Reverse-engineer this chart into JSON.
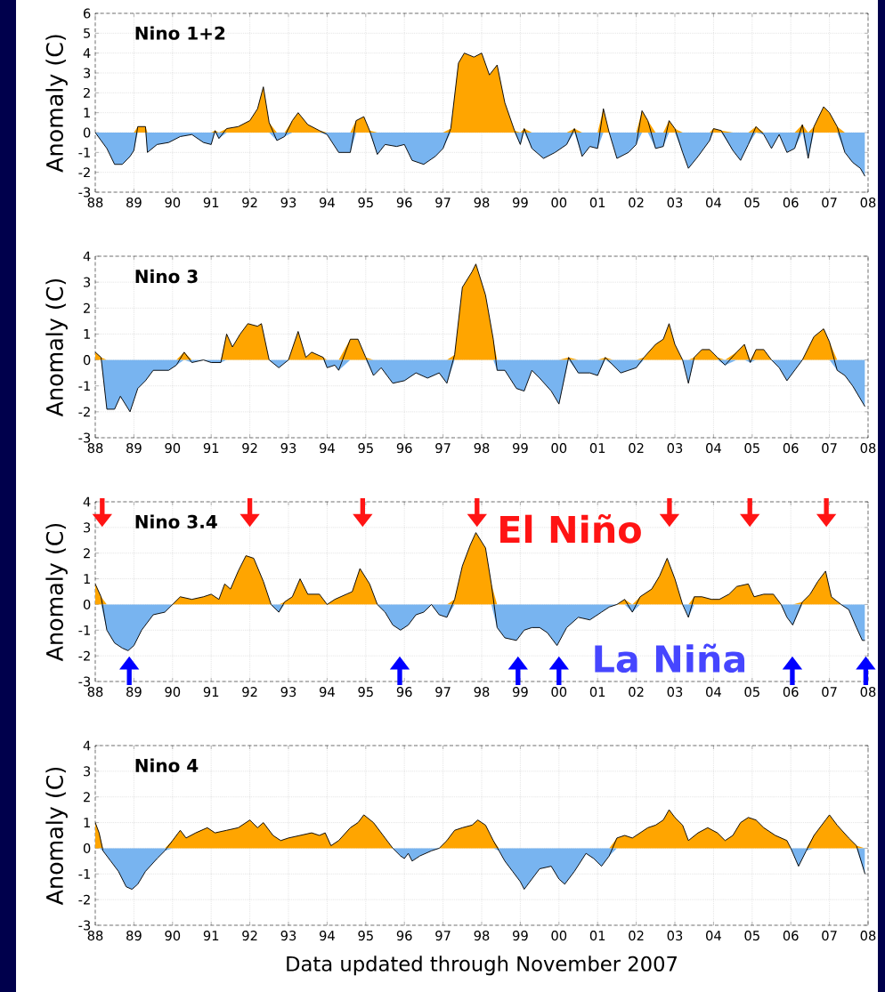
{
  "chart_data": [
    {
      "type": "area",
      "title": "Nino 1+2",
      "ylabel": "Anomaly (C)",
      "grid": true,
      "xlim": [
        1988,
        2008
      ],
      "ylim": [
        -3,
        6
      ],
      "xticks": [
        {
          "value": 1988,
          "label": "88"
        },
        {
          "value": 1989,
          "label": "89"
        },
        {
          "value": 1990,
          "label": "90"
        },
        {
          "value": 1991,
          "label": "91"
        },
        {
          "value": 1992,
          "label": "92"
        },
        {
          "value": 1993,
          "label": "93"
        },
        {
          "value": 1994,
          "label": "94"
        },
        {
          "value": 1995,
          "label": "95"
        },
        {
          "value": 1996,
          "label": "96"
        },
        {
          "value": 1997,
          "label": "97"
        },
        {
          "value": 1998,
          "label": "98"
        },
        {
          "value": 1999,
          "label": "99"
        },
        {
          "value": 2000,
          "label": "00"
        },
        {
          "value": 2001,
          "label": "01"
        },
        {
          "value": 2002,
          "label": "02"
        },
        {
          "value": 2003,
          "label": "03"
        },
        {
          "value": 2004,
          "label": "04"
        },
        {
          "value": 2005,
          "label": "05"
        },
        {
          "value": 2006,
          "label": "06"
        },
        {
          "value": 2007,
          "label": "07"
        },
        {
          "value": 2008,
          "label": "08"
        }
      ],
      "yticks": [
        -3,
        -2,
        -1,
        0,
        1,
        2,
        3,
        4,
        5,
        6
      ],
      "x": [
        1988.0,
        1988.3,
        1988.5,
        1988.7,
        1988.9,
        1989.0,
        1989.1,
        1989.3,
        1989.35,
        1989.6,
        1989.9,
        1990.2,
        1990.5,
        1990.8,
        1991.0,
        1991.1,
        1991.2,
        1991.4,
        1991.7,
        1992.0,
        1992.2,
        1992.35,
        1992.5,
        1992.7,
        1992.9,
        1993.1,
        1993.25,
        1993.5,
        1993.8,
        1994.0,
        1994.3,
        1994.6,
        1994.75,
        1994.95,
        1995.1,
        1995.3,
        1995.5,
        1995.8,
        1996.0,
        1996.2,
        1996.5,
        1996.8,
        1997.0,
        1997.2,
        1997.4,
        1997.55,
        1997.8,
        1998.0,
        1998.2,
        1998.4,
        1998.6,
        1998.85,
        1999.0,
        1999.1,
        1999.3,
        1999.6,
        1999.9,
        2000.2,
        2000.4,
        2000.6,
        2000.8,
        2001.0,
        2001.15,
        2001.3,
        2001.5,
        2001.8,
        2002.0,
        2002.15,
        2002.3,
        2002.5,
        2002.7,
        2002.85,
        2003.0,
        2003.2,
        2003.35,
        2003.6,
        2003.9,
        2004.0,
        2004.2,
        2004.5,
        2004.7,
        2004.9,
        2005.1,
        2005.3,
        2005.5,
        2005.7,
        2005.9,
        2006.1,
        2006.3,
        2006.45,
        2006.6,
        2006.85,
        2007.0,
        2007.2,
        2007.4,
        2007.6,
        2007.8,
        2007.92
      ],
      "series": [
        {
          "type": "area",
          "color": "#ffa500",
          "values": [
            0,
            0,
            0,
            0,
            0,
            0,
            0.3,
            0.3,
            0,
            0,
            0,
            0,
            0,
            0,
            0,
            0.1,
            0,
            0.2,
            0.3,
            0.6,
            1.2,
            2.3,
            0.5,
            0,
            0,
            0.6,
            1.0,
            0.4,
            0.1,
            0,
            0,
            0,
            0.6,
            0.8,
            0.1,
            0,
            0,
            0,
            0,
            0,
            0,
            0,
            0,
            0.2,
            3.5,
            4.0,
            3.8,
            4.0,
            2.9,
            3.4,
            1.5,
            0.1,
            0,
            0.2,
            0,
            0,
            0,
            0,
            0.2,
            0,
            0,
            0,
            1.2,
            0,
            0,
            0,
            0,
            1.1,
            0.6,
            0,
            0,
            0.6,
            0.2,
            0,
            0,
            0,
            0,
            0.2,
            0.1,
            0,
            0,
            0,
            0.3,
            0,
            0,
            0,
            0,
            0,
            0.4,
            0,
            0.3,
            1.3,
            1.0,
            0.3,
            0,
            0,
            0,
            0
          ]
        },
        {
          "type": "area",
          "color": "#78b4f0",
          "values": [
            0,
            -0.8,
            -1.6,
            -1.6,
            -1.2,
            -0.9,
            0,
            0,
            -1.0,
            -0.6,
            -0.5,
            -0.2,
            -0.1,
            -0.5,
            -0.6,
            0,
            -0.3,
            0,
            0,
            0,
            0,
            0,
            0,
            -0.4,
            -0.2,
            0,
            0,
            0,
            0,
            -0.1,
            -1.0,
            -1.0,
            0,
            0,
            0,
            -1.1,
            -0.6,
            -0.7,
            -0.6,
            -1.4,
            -1.6,
            -1.2,
            -0.8,
            0,
            0,
            0,
            0,
            0,
            0,
            0,
            0,
            0,
            -0.6,
            0,
            -0.8,
            -1.3,
            -1.0,
            -0.6,
            0,
            -1.2,
            -0.7,
            -0.8,
            0,
            0,
            -1.3,
            -1.0,
            -0.6,
            0,
            0,
            -0.8,
            -0.7,
            0,
            0,
            -1.0,
            -1.8,
            -1.2,
            -0.4,
            0,
            0,
            -0.9,
            -1.4,
            -0.6,
            0,
            -0.1,
            -0.8,
            -0.1,
            -1.0,
            -0.8,
            0,
            -1.3,
            0,
            0,
            0,
            0,
            -1.0,
            -1.5,
            -1.8,
            -2.2
          ]
        },
        {
          "type": "line",
          "color": "#000000",
          "values": [
            0,
            -0.8,
            -1.6,
            -1.6,
            -1.2,
            -0.9,
            0.3,
            0.3,
            -1.0,
            -0.6,
            -0.5,
            -0.2,
            -0.1,
            -0.5,
            -0.6,
            0.1,
            -0.3,
            0.2,
            0.3,
            0.6,
            1.2,
            2.3,
            0.5,
            -0.4,
            -0.2,
            0.6,
            1.0,
            0.4,
            0.1,
            -0.1,
            -1.0,
            -1.0,
            0.6,
            0.8,
            0.1,
            -1.1,
            -0.6,
            -0.7,
            -0.6,
            -1.4,
            -1.6,
            -1.2,
            -0.8,
            0.2,
            3.5,
            4.0,
            3.8,
            4.0,
            2.9,
            3.4,
            1.5,
            0.1,
            -0.6,
            0.2,
            -0.8,
            -1.3,
            -1.0,
            -0.6,
            0.2,
            -1.2,
            -0.7,
            -0.8,
            1.2,
            0.0,
            -1.3,
            -1.0,
            -0.6,
            1.1,
            0.6,
            -0.8,
            -0.7,
            0.6,
            0.2,
            -1.0,
            -1.8,
            -1.2,
            -0.4,
            0.2,
            0.1,
            -0.9,
            -1.4,
            -0.6,
            0.3,
            -0.1,
            -0.8,
            -0.1,
            -1.0,
            -0.8,
            0.4,
            -1.3,
            0.3,
            1.3,
            1.0,
            0.3,
            -1.0,
            -1.5,
            -1.8,
            -2.2
          ]
        }
      ]
    },
    {
      "type": "area",
      "title": "Nino 3",
      "ylabel": "Anomaly (C)",
      "grid": true,
      "xlim": [
        1988,
        2008
      ],
      "ylim": [
        -3,
        4
      ],
      "xticks": [
        {
          "value": 1988,
          "label": "88"
        },
        {
          "value": 1989,
          "label": "89"
        },
        {
          "value": 1990,
          "label": "90"
        },
        {
          "value": 1991,
          "label": "91"
        },
        {
          "value": 1992,
          "label": "92"
        },
        {
          "value": 1993,
          "label": "93"
        },
        {
          "value": 1994,
          "label": "94"
        },
        {
          "value": 1995,
          "label": "95"
        },
        {
          "value": 1996,
          "label": "96"
        },
        {
          "value": 1997,
          "label": "97"
        },
        {
          "value": 1998,
          "label": "98"
        },
        {
          "value": 1999,
          "label": "99"
        },
        {
          "value": 2000,
          "label": "00"
        },
        {
          "value": 2001,
          "label": "01"
        },
        {
          "value": 2002,
          "label": "02"
        },
        {
          "value": 2003,
          "label": "03"
        },
        {
          "value": 2004,
          "label": "04"
        },
        {
          "value": 2005,
          "label": "05"
        },
        {
          "value": 2006,
          "label": "06"
        },
        {
          "value": 2007,
          "label": "07"
        },
        {
          "value": 2008,
          "label": "08"
        }
      ],
      "yticks": [
        -3,
        -2,
        -1,
        0,
        1,
        2,
        3,
        4
      ],
      "x": [
        1988.0,
        1988.15,
        1988.3,
        1988.5,
        1988.65,
        1988.9,
        1989.1,
        1989.3,
        1989.5,
        1989.9,
        1990.1,
        1990.3,
        1990.5,
        1990.8,
        1991.0,
        1991.25,
        1991.4,
        1991.55,
        1991.75,
        1991.95,
        1992.2,
        1992.3,
        1992.5,
        1992.75,
        1993.0,
        1993.25,
        1993.45,
        1993.6,
        1993.9,
        1994.0,
        1994.2,
        1994.3,
        1994.6,
        1994.8,
        1995.0,
        1995.2,
        1995.4,
        1995.7,
        1996.0,
        1996.3,
        1996.6,
        1996.9,
        1997.1,
        1997.3,
        1997.5,
        1997.75,
        1997.85,
        1998.1,
        1998.3,
        1998.4,
        1998.6,
        1998.9,
        1999.1,
        1999.3,
        1999.5,
        1999.8,
        2000.0,
        2000.25,
        2000.5,
        2000.8,
        2001.0,
        2001.2,
        2001.4,
        2001.6,
        2001.8,
        2002.0,
        2002.2,
        2002.5,
        2002.7,
        2002.85,
        2003.0,
        2003.2,
        2003.35,
        2003.5,
        2003.7,
        2003.9,
        2004.1,
        2004.3,
        2004.6,
        2004.8,
        2004.95,
        2005.1,
        2005.3,
        2005.5,
        2005.7,
        2005.9,
        2006.1,
        2006.3,
        2006.6,
        2006.85,
        2007.0,
        2007.2,
        2007.4,
        2007.6,
        2007.92
      ],
      "series": [
        {
          "type": "area",
          "color": "#ffa500",
          "values": [
            0.3,
            0.1,
            0,
            0,
            0,
            0,
            0,
            0,
            0,
            0,
            0,
            0.3,
            0,
            0,
            0,
            0,
            1.0,
            0.5,
            1.0,
            1.4,
            1.3,
            1.4,
            0,
            0,
            0,
            1.1,
            0.1,
            0.3,
            0.1,
            0,
            0,
            0,
            0.8,
            0.8,
            0.1,
            0,
            0,
            0,
            0,
            0,
            0,
            0,
            0,
            0.2,
            2.8,
            3.4,
            3.7,
            2.5,
            0.8,
            0,
            0,
            0,
            0,
            0,
            0,
            0,
            0,
            0.1,
            0,
            0,
            0,
            0.1,
            0,
            0,
            0,
            0,
            0.1,
            0.6,
            0.8,
            1.4,
            0.6,
            0,
            0,
            0.1,
            0.4,
            0.4,
            0.1,
            0,
            0.3,
            0.6,
            0,
            0.4,
            0.4,
            0,
            0,
            0,
            0,
            0,
            0.9,
            1.2,
            0.7,
            0,
            0,
            0,
            0
          ]
        },
        {
          "type": "area",
          "color": "#78b4f0",
          "values": [
            0,
            0,
            -1.9,
            -1.9,
            -1.4,
            -2.0,
            -1.1,
            -0.8,
            -0.4,
            -0.4,
            -0.2,
            0,
            -0.1,
            0,
            -0.1,
            -0.1,
            0,
            0,
            0,
            0,
            0,
            0,
            0,
            -0.3,
            0,
            0,
            0,
            0,
            0,
            -0.3,
            -0.2,
            -0.4,
            0,
            0,
            0,
            -0.6,
            -0.3,
            -0.9,
            -0.8,
            -0.5,
            -0.7,
            -0.5,
            -0.9,
            0,
            0,
            0,
            0,
            0,
            0,
            -0.4,
            -0.4,
            -1.1,
            -1.2,
            -0.4,
            -0.7,
            -1.2,
            -1.7,
            0,
            -0.5,
            -0.5,
            -0.6,
            0,
            -0.2,
            -0.5,
            -0.4,
            -0.3,
            0,
            0,
            0,
            0,
            0,
            0,
            -0.9,
            0,
            0,
            0,
            0,
            -0.2,
            0,
            0,
            -0.1,
            0,
            0,
            0,
            -0.3,
            -0.8,
            -0.4,
            0,
            0,
            0,
            0,
            -0.4,
            -0.6,
            -1.0,
            -1.8
          ]
        },
        {
          "type": "line",
          "color": "#000000",
          "values": [
            0.3,
            0.1,
            -1.9,
            -1.9,
            -1.4,
            -2.0,
            -1.1,
            -0.8,
            -0.4,
            -0.4,
            -0.2,
            0.3,
            -0.1,
            0.0,
            -0.1,
            -0.1,
            1.0,
            0.5,
            1.0,
            1.4,
            1.3,
            1.4,
            0.0,
            -0.3,
            0.0,
            1.1,
            0.1,
            0.3,
            0.1,
            -0.3,
            -0.2,
            -0.4,
            0.8,
            0.8,
            0.1,
            -0.6,
            -0.3,
            -0.9,
            -0.8,
            -0.5,
            -0.7,
            -0.5,
            -0.9,
            0.2,
            2.8,
            3.4,
            3.7,
            2.5,
            0.8,
            -0.4,
            -0.4,
            -1.1,
            -1.2,
            -0.4,
            -0.7,
            -1.2,
            -1.7,
            0.1,
            -0.5,
            -0.5,
            -0.6,
            0.1,
            -0.2,
            -0.5,
            -0.4,
            -0.3,
            0.1,
            0.6,
            0.8,
            1.4,
            0.6,
            0.0,
            -0.9,
            0.1,
            0.4,
            0.4,
            0.1,
            -0.2,
            0.3,
            0.6,
            -0.1,
            0.4,
            0.4,
            0.0,
            -0.3,
            -0.8,
            -0.4,
            0.0,
            0.9,
            1.2,
            0.7,
            -0.4,
            -0.6,
            -1.0,
            -1.8
          ]
        }
      ]
    },
    {
      "type": "area",
      "title": "Nino 3.4",
      "ylabel": "Anomaly (C)",
      "grid": true,
      "xlim": [
        1988,
        2008
      ],
      "ylim": [
        -3,
        4
      ],
      "annotations": [
        "El Niño",
        "La Niña"
      ],
      "xticks": [
        {
          "value": 1988,
          "label": "88"
        },
        {
          "value": 1989,
          "label": "89"
        },
        {
          "value": 1990,
          "label": "90"
        },
        {
          "value": 1991,
          "label": "91"
        },
        {
          "value": 1992,
          "label": "92"
        },
        {
          "value": 1993,
          "label": "93"
        },
        {
          "value": 1994,
          "label": "94"
        },
        {
          "value": 1995,
          "label": "95"
        },
        {
          "value": 1996,
          "label": "96"
        },
        {
          "value": 1997,
          "label": "97"
        },
        {
          "value": 1998,
          "label": "98"
        },
        {
          "value": 1999,
          "label": "99"
        },
        {
          "value": 2000,
          "label": "00"
        },
        {
          "value": 2001,
          "label": "01"
        },
        {
          "value": 2002,
          "label": "02"
        },
        {
          "value": 2003,
          "label": "03"
        },
        {
          "value": 2004,
          "label": "04"
        },
        {
          "value": 2005,
          "label": "05"
        },
        {
          "value": 2006,
          "label": "06"
        },
        {
          "value": 2007,
          "label": "07"
        },
        {
          "value": 2008,
          "label": "08"
        }
      ],
      "yticks": [
        -3,
        -2,
        -1,
        0,
        1,
        2,
        3,
        4
      ],
      "x": [
        1988.0,
        1988.15,
        1988.3,
        1988.5,
        1988.7,
        1988.85,
        1989.0,
        1989.2,
        1989.5,
        1989.8,
        1990.0,
        1990.2,
        1990.5,
        1990.8,
        1991.0,
        1991.2,
        1991.35,
        1991.5,
        1991.7,
        1991.9,
        1992.1,
        1992.35,
        1992.55,
        1992.75,
        1992.9,
        1993.1,
        1993.3,
        1993.5,
        1993.8,
        1994.0,
        1994.2,
        1994.5,
        1994.65,
        1994.85,
        1995.1,
        1995.3,
        1995.5,
        1995.7,
        1995.9,
        1996.1,
        1996.3,
        1996.5,
        1996.7,
        1996.9,
        1997.1,
        1997.3,
        1997.5,
        1997.7,
        1997.85,
        1998.1,
        1998.25,
        1998.4,
        1998.6,
        1998.9,
        1999.1,
        1999.3,
        1999.5,
        1999.7,
        1999.95,
        2000.2,
        2000.5,
        2000.8,
        2001.1,
        2001.3,
        2001.5,
        2001.7,
        2001.9,
        2002.1,
        2002.4,
        2002.6,
        2002.8,
        2003.0,
        2003.2,
        2003.35,
        2003.5,
        2003.7,
        2003.95,
        2004.15,
        2004.4,
        2004.6,
        2004.9,
        2005.05,
        2005.3,
        2005.55,
        2005.75,
        2005.9,
        2006.05,
        2006.3,
        2006.5,
        2006.7,
        2006.9,
        2007.05,
        2007.3,
        2007.5,
        2007.7,
        2007.85,
        2007.92
      ],
      "series": [
        {
          "type": "area",
          "color": "#ffa500",
          "values": [
            0.8,
            0.3,
            0,
            0,
            0,
            0,
            0,
            0,
            0,
            0,
            0,
            0.3,
            0.2,
            0.3,
            0.4,
            0.2,
            0.8,
            0.6,
            1.3,
            1.9,
            1.8,
            0.9,
            0,
            0,
            0.1,
            0.3,
            1.0,
            0.4,
            0.4,
            0,
            0.2,
            0.4,
            0.5,
            1.4,
            0.8,
            0,
            0,
            0,
            0,
            0,
            0,
            0,
            0,
            0,
            0,
            0.2,
            1.5,
            2.3,
            2.8,
            2.2,
            0.8,
            0,
            0,
            0,
            0,
            0,
            0,
            0,
            0,
            0,
            0,
            0,
            0,
            0,
            0,
            0.2,
            0,
            0.3,
            0.6,
            1.1,
            1.8,
            1.0,
            0,
            0,
            0.3,
            0.3,
            0.2,
            0.2,
            0.4,
            0.7,
            0.8,
            0.3,
            0.4,
            0.4,
            0,
            0,
            0,
            0.1,
            0.4,
            0.9,
            1.3,
            0.3,
            0,
            0,
            0,
            0,
            0
          ]
        },
        {
          "type": "area",
          "color": "#78b4f0",
          "values": [
            0,
            0,
            -1.0,
            -1.5,
            -1.7,
            -1.8,
            -1.6,
            -1.0,
            -0.4,
            -0.3,
            0,
            0,
            0,
            0,
            0,
            0,
            0,
            0,
            0,
            0,
            0,
            0,
            0,
            -0.3,
            0,
            0,
            0,
            0,
            0,
            0,
            0,
            0,
            0,
            0,
            0,
            0,
            -0.3,
            -0.8,
            -1.0,
            -0.8,
            -0.4,
            -0.3,
            0,
            -0.4,
            -0.5,
            0,
            0,
            0,
            0,
            0,
            0,
            -0.9,
            -1.3,
            -1.4,
            -1.0,
            -0.9,
            -0.9,
            -1.1,
            -1.6,
            -0.9,
            -0.5,
            -0.6,
            -0.3,
            -0.1,
            0,
            0,
            -0.3,
            0,
            0,
            0,
            0,
            0,
            0,
            -0.5,
            0,
            0,
            0,
            0,
            0,
            0,
            0,
            0,
            0,
            0,
            0,
            -0.5,
            -0.8,
            0,
            0,
            0,
            0,
            0,
            0,
            -0.2,
            -0.9,
            -1.4,
            -1.4
          ]
        },
        {
          "type": "line",
          "color": "#000000",
          "values": [
            0.8,
            0.3,
            -1.0,
            -1.5,
            -1.7,
            -1.8,
            -1.6,
            -1.0,
            -0.4,
            -0.3,
            0.0,
            0.3,
            0.2,
            0.3,
            0.4,
            0.2,
            0.8,
            0.6,
            1.3,
            1.9,
            1.8,
            0.9,
            0.0,
            -0.3,
            0.1,
            0.3,
            1.0,
            0.4,
            0.4,
            0.0,
            0.2,
            0.4,
            0.5,
            1.4,
            0.8,
            0.0,
            -0.3,
            -0.8,
            -1.0,
            -0.8,
            -0.4,
            -0.3,
            0.0,
            -0.4,
            -0.5,
            0.2,
            1.5,
            2.3,
            2.8,
            2.2,
            0.8,
            -0.9,
            -1.3,
            -1.4,
            -1.0,
            -0.9,
            -0.9,
            -1.1,
            -1.6,
            -0.9,
            -0.5,
            -0.6,
            -0.3,
            -0.1,
            0.0,
            0.2,
            -0.3,
            0.3,
            0.6,
            1.1,
            1.8,
            1.0,
            0.0,
            -0.5,
            0.3,
            0.3,
            0.2,
            0.2,
            0.4,
            0.7,
            0.8,
            0.3,
            0.4,
            0.4,
            0.0,
            -0.5,
            -0.8,
            0.1,
            0.4,
            0.9,
            1.3,
            0.3,
            0.0,
            -0.2,
            -0.9,
            -1.4,
            -1.4
          ]
        }
      ]
    },
    {
      "type": "area",
      "title": "Nino 4",
      "ylabel": "Anomaly (C)",
      "xlabel": "Data updated through November 2007",
      "grid": true,
      "xlim": [
        1988,
        2008
      ],
      "ylim": [
        -3,
        4
      ],
      "xticks": [
        {
          "value": 1988,
          "label": "88"
        },
        {
          "value": 1989,
          "label": "89"
        },
        {
          "value": 1990,
          "label": "90"
        },
        {
          "value": 1991,
          "label": "91"
        },
        {
          "value": 1992,
          "label": "92"
        },
        {
          "value": 1993,
          "label": "93"
        },
        {
          "value": 1994,
          "label": "94"
        },
        {
          "value": 1995,
          "label": "95"
        },
        {
          "value": 1996,
          "label": "96"
        },
        {
          "value": 1997,
          "label": "97"
        },
        {
          "value": 1998,
          "label": "98"
        },
        {
          "value": 1999,
          "label": "99"
        },
        {
          "value": 2000,
          "label": "00"
        },
        {
          "value": 2001,
          "label": "01"
        },
        {
          "value": 2002,
          "label": "02"
        },
        {
          "value": 2003,
          "label": "03"
        },
        {
          "value": 2004,
          "label": "04"
        },
        {
          "value": 2005,
          "label": "05"
        },
        {
          "value": 2006,
          "label": "06"
        },
        {
          "value": 2007,
          "label": "07"
        },
        {
          "value": 2008,
          "label": "08"
        }
      ],
      "yticks": [
        -3,
        -2,
        -1,
        0,
        1,
        2,
        3,
        4
      ],
      "x": [
        1988.0,
        1988.1,
        1988.2,
        1988.4,
        1988.6,
        1988.8,
        1988.95,
        1989.1,
        1989.3,
        1989.6,
        1989.8,
        1990.0,
        1990.2,
        1990.35,
        1990.6,
        1990.9,
        1991.1,
        1991.4,
        1991.7,
        1992.0,
        1992.2,
        1992.35,
        1992.6,
        1992.8,
        1993.0,
        1993.3,
        1993.6,
        1993.8,
        1993.95,
        1994.1,
        1994.3,
        1994.6,
        1994.8,
        1994.95,
        1995.2,
        1995.5,
        1995.7,
        1995.9,
        1996.0,
        1996.1,
        1996.2,
        1996.4,
        1996.7,
        1996.9,
        1997.1,
        1997.3,
        1997.5,
        1997.75,
        1997.9,
        1998.1,
        1998.3,
        1998.45,
        1998.6,
        1998.8,
        1999.0,
        1999.1,
        1999.3,
        1999.5,
        1999.8,
        2000.0,
        2000.15,
        2000.4,
        2000.7,
        2000.9,
        2001.1,
        2001.3,
        2001.5,
        2001.7,
        2001.9,
        2002.1,
        2002.3,
        2002.5,
        2002.7,
        2002.85,
        2003.0,
        2003.2,
        2003.35,
        2003.6,
        2003.85,
        2004.1,
        2004.3,
        2004.5,
        2004.7,
        2004.9,
        2005.1,
        2005.3,
        2005.6,
        2005.9,
        2006.0,
        2006.2,
        2006.4,
        2006.6,
        2006.9,
        2007.0,
        2007.2,
        2007.5,
        2007.7,
        2007.92
      ],
      "series": [
        {
          "type": "area",
          "color": "#ffa500",
          "values": [
            1.0,
            0.6,
            0,
            0,
            0,
            0,
            0,
            0,
            0,
            0,
            0,
            0.3,
            0.7,
            0.4,
            0.6,
            0.8,
            0.6,
            0.7,
            0.8,
            1.1,
            0.8,
            1.0,
            0.5,
            0.3,
            0.4,
            0.5,
            0.6,
            0.5,
            0.6,
            0.1,
            0.3,
            0.8,
            1.0,
            1.3,
            1.0,
            0.4,
            0,
            0,
            0,
            0,
            0,
            0,
            0,
            0,
            0.3,
            0.7,
            0.8,
            0.9,
            1.1,
            0.9,
            0.3,
            0,
            0,
            0,
            0,
            0,
            0,
            0,
            0,
            0,
            0,
            0,
            0,
            0,
            0,
            0,
            0.4,
            0.5,
            0.4,
            0.6,
            0.8,
            0.9,
            1.1,
            1.5,
            1.2,
            0.9,
            0.3,
            0.6,
            0.8,
            0.6,
            0.3,
            0.5,
            1.0,
            1.2,
            1.1,
            0.8,
            0.5,
            0.3,
            0,
            0,
            0,
            0.5,
            1.1,
            1.3,
            0.9,
            0.4,
            0.1,
            0
          ]
        },
        {
          "type": "area",
          "color": "#78b4f0",
          "values": [
            0,
            0,
            -0.1,
            -0.5,
            -0.9,
            -1.5,
            -1.6,
            -1.4,
            -0.9,
            -0.4,
            -0.1,
            0,
            0,
            0,
            0,
            0,
            0,
            0,
            0,
            0,
            0,
            0,
            0,
            0,
            0,
            0,
            0,
            0,
            0,
            0,
            0,
            0,
            0,
            0,
            0,
            0,
            0,
            -0.3,
            -0.4,
            -0.2,
            -0.5,
            -0.3,
            -0.1,
            0,
            0,
            0,
            0,
            0,
            0,
            0,
            0,
            -0.1,
            -0.5,
            -0.9,
            -1.3,
            -1.6,
            -1.2,
            -0.8,
            -0.7,
            -1.2,
            -1.4,
            -0.9,
            -0.2,
            -0.4,
            -0.7,
            -0.3,
            0,
            0,
            0,
            0,
            0,
            0,
            0,
            0,
            0,
            0,
            0,
            0,
            0,
            0,
            0,
            0,
            0,
            0,
            0,
            0,
            0,
            0,
            0,
            -0.7,
            -0.1,
            0,
            0,
            0,
            0,
            0,
            0,
            -1.0
          ]
        },
        {
          "type": "line",
          "color": "#000000",
          "values": [
            1.0,
            0.6,
            -0.1,
            -0.5,
            -0.9,
            -1.5,
            -1.6,
            -1.4,
            -0.9,
            -0.4,
            -0.1,
            0.3,
            0.7,
            0.4,
            0.6,
            0.8,
            0.6,
            0.7,
            0.8,
            1.1,
            0.8,
            1.0,
            0.5,
            0.3,
            0.4,
            0.5,
            0.6,
            0.5,
            0.6,
            0.1,
            0.3,
            0.8,
            1.0,
            1.3,
            1.0,
            0.4,
            0.0,
            -0.3,
            -0.4,
            -0.2,
            -0.5,
            -0.3,
            -0.1,
            0.0,
            0.3,
            0.7,
            0.8,
            0.9,
            1.1,
            0.9,
            0.3,
            -0.1,
            -0.5,
            -0.9,
            -1.3,
            -1.6,
            -1.2,
            -0.8,
            -0.7,
            -1.2,
            -1.4,
            -0.9,
            -0.2,
            -0.4,
            -0.7,
            -0.3,
            0.4,
            0.5,
            0.4,
            0.6,
            0.8,
            0.9,
            1.1,
            1.5,
            1.2,
            0.9,
            0.3,
            0.6,
            0.8,
            0.6,
            0.3,
            0.5,
            1.0,
            1.2,
            1.1,
            0.8,
            0.5,
            0.3,
            0.0,
            -0.7,
            -0.1,
            0.5,
            1.1,
            1.3,
            0.9,
            0.4,
            0.1,
            -1.0
          ]
        }
      ]
    }
  ]
}
